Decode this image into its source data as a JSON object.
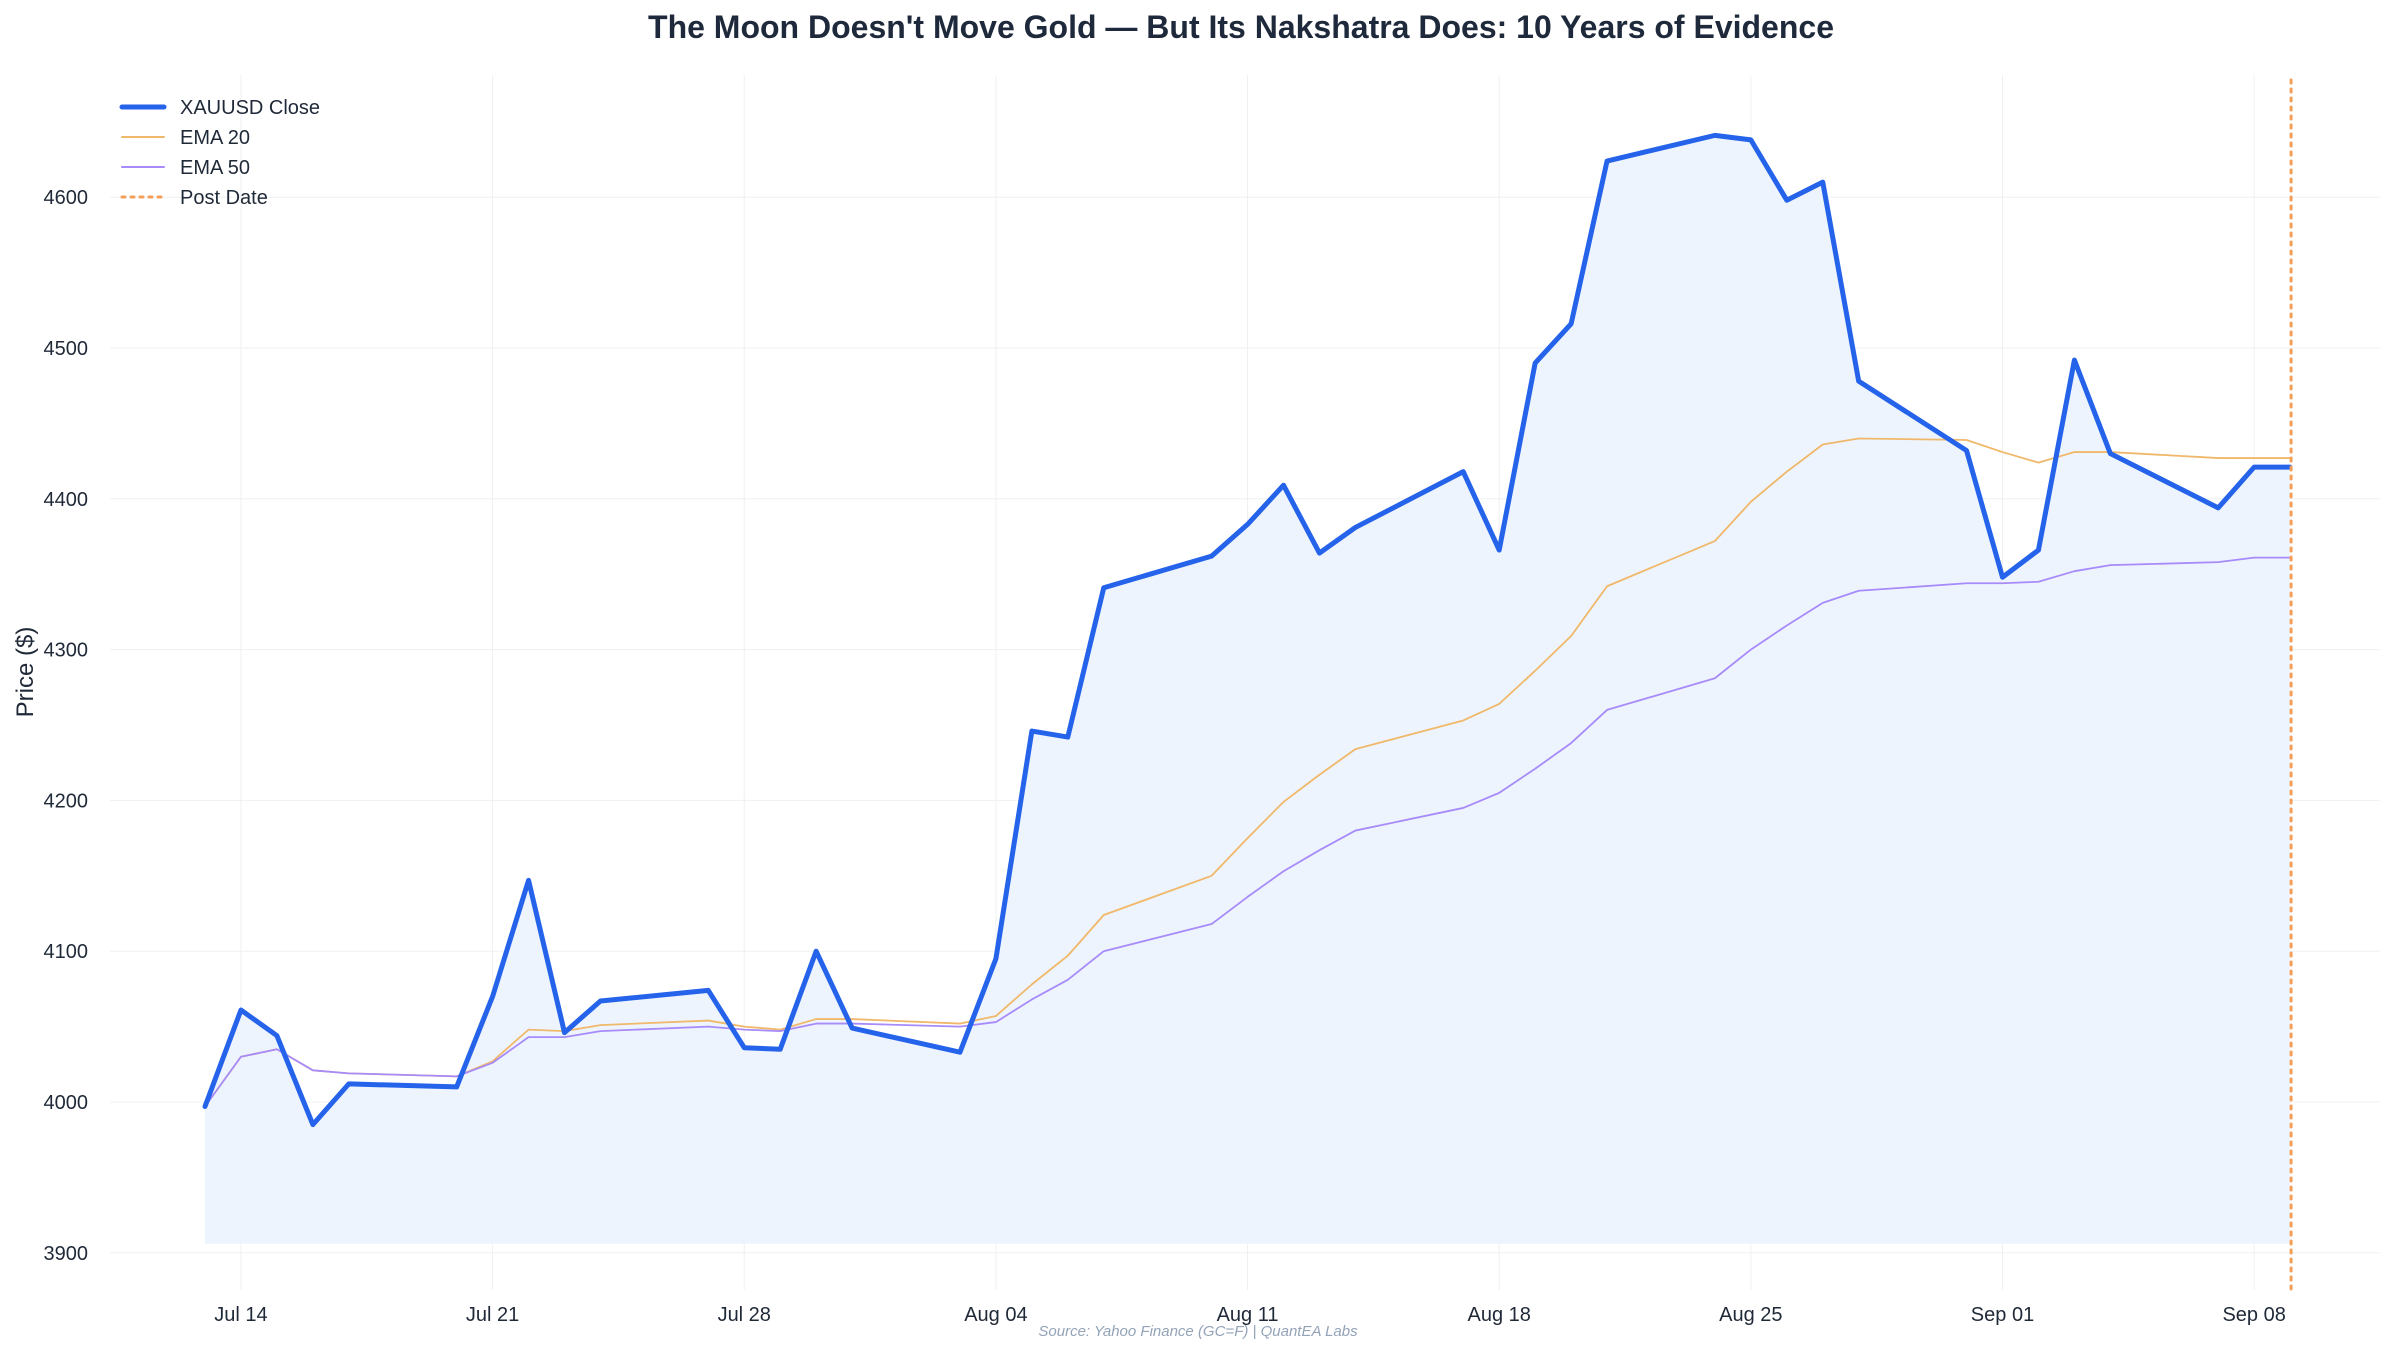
{
  "chart_data": {
    "type": "line",
    "title": "The Moon Doesn't Move Gold — But Its Nakshatra Does: 10 Years of Evidence",
    "ylabel": "Price ($)",
    "xlabel": "",
    "ylim": [
      3900,
      4680
    ],
    "yticks": [
      3900,
      4000,
      4100,
      4200,
      4300,
      4400,
      4500,
      4600
    ],
    "x_start": "2025-07-13",
    "xtick_labels": [
      {
        "date": "2025-07-14",
        "label": "Jul 14"
      },
      {
        "date": "2025-07-21",
        "label": "Jul 21"
      },
      {
        "date": "2025-07-28",
        "label": "Jul 28"
      },
      {
        "date": "2025-08-04",
        "label": "Aug 04"
      },
      {
        "date": "2025-08-11",
        "label": "Aug 11"
      },
      {
        "date": "2025-08-18",
        "label": "Aug 18"
      },
      {
        "date": "2025-08-25",
        "label": "Aug 25"
      },
      {
        "date": "2025-09-01",
        "label": "Sep 01"
      },
      {
        "date": "2025-09-08",
        "label": "Sep 08"
      }
    ],
    "x": [
      "2025-07-13",
      "2025-07-14",
      "2025-07-15",
      "2025-07-16",
      "2025-07-17",
      "2025-07-20",
      "2025-07-21",
      "2025-07-22",
      "2025-07-23",
      "2025-07-24",
      "2025-07-27",
      "2025-07-28",
      "2025-07-29",
      "2025-07-30",
      "2025-07-31",
      "2025-08-03",
      "2025-08-04",
      "2025-08-05",
      "2025-08-06",
      "2025-08-07",
      "2025-08-10",
      "2025-08-11",
      "2025-08-12",
      "2025-08-13",
      "2025-08-14",
      "2025-08-17",
      "2025-08-18",
      "2025-08-19",
      "2025-08-20",
      "2025-08-21",
      "2025-08-24",
      "2025-08-25",
      "2025-08-26",
      "2025-08-27",
      "2025-08-28",
      "2025-08-31",
      "2025-09-01",
      "2025-09-02",
      "2025-09-03",
      "2025-09-04",
      "2025-09-07",
      "2025-09-08",
      "2025-09-09"
    ],
    "series": [
      {
        "name": "XAUUSD Close",
        "color": "#2563eb",
        "values": [
          3997,
          4061,
          4044,
          3985,
          4012,
          4010,
          4070,
          4147,
          4046,
          4067,
          4074,
          4036,
          4035,
          4100,
          4049,
          4033,
          4095,
          4246,
          4242,
          4341,
          4362,
          4383,
          4409,
          4364,
          4381,
          4418,
          4366,
          4490,
          4516,
          4624,
          4641,
          4638,
          4598,
          4610,
          4478,
          4432,
          4348,
          4366,
          4492,
          4430,
          4394,
          4421,
          4421
        ],
        "fill": "#eef4fd"
      },
      {
        "name": "EMA 20",
        "color": "#f0b86a",
        "values": [
          3997,
          4030,
          4035,
          4021,
          4019,
          4017,
          4027,
          4048,
          4047,
          4051,
          4054,
          4050,
          4048,
          4055,
          4055,
          4052,
          4057,
          4078,
          4097,
          4124,
          4150,
          4175,
          4199,
          4217,
          4234,
          4253,
          4264,
          4286,
          4309,
          4342,
          4372,
          4398,
          4418,
          4436,
          4440,
          4439,
          4431,
          4424,
          4431,
          4431,
          4427,
          4427,
          4427
        ]
      },
      {
        "name": "EMA 50",
        "color": "#a78bfa",
        "values": [
          3997,
          4030,
          4035,
          4021,
          4019,
          4017,
          4026,
          4043,
          4043,
          4047,
          4050,
          4048,
          4047,
          4052,
          4052,
          4050,
          4053,
          4068,
          4081,
          4100,
          4118,
          4136,
          4153,
          4167,
          4180,
          4195,
          4205,
          4221,
          4238,
          4260,
          4281,
          4300,
          4316,
          4331,
          4339,
          4344,
          4344,
          4345,
          4352,
          4356,
          4358,
          4361,
          4361
        ]
      }
    ],
    "post_date": {
      "label": "Post Date",
      "date": "2025-09-09",
      "color": "#f59e57"
    },
    "legend": "top-left",
    "grid": true,
    "source": "Source: Yahoo Finance (GC=F) | QuantEA Labs"
  }
}
